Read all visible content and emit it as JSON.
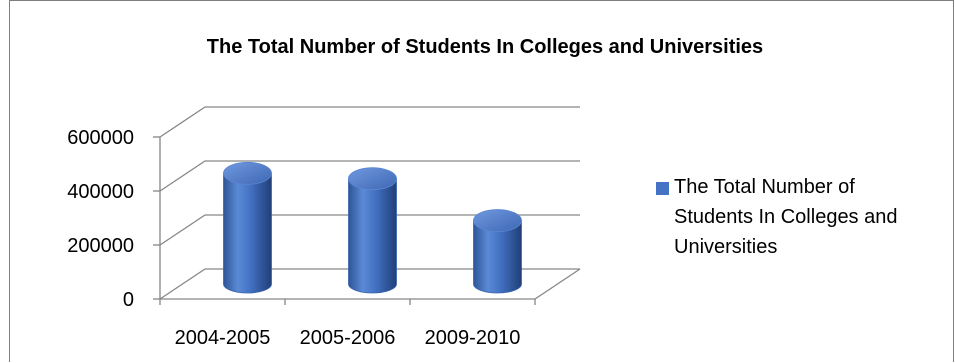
{
  "chart_data": {
    "type": "bar",
    "title": "The Total Number of Students In Colleges and Universities",
    "categories": [
      "2004-2005",
      "2005-2006",
      "2009-2010"
    ],
    "series": [
      {
        "name": "The Total Number of Students In Colleges and Universities",
        "values": [
          410000,
          390000,
          235000
        ],
        "color": "#4472c4"
      }
    ],
    "yticks": [
      0,
      200000,
      400000,
      600000
    ],
    "ylim": [
      0,
      600000
    ],
    "legend_position": "right",
    "grid": true,
    "style": "3d-cylinder"
  }
}
